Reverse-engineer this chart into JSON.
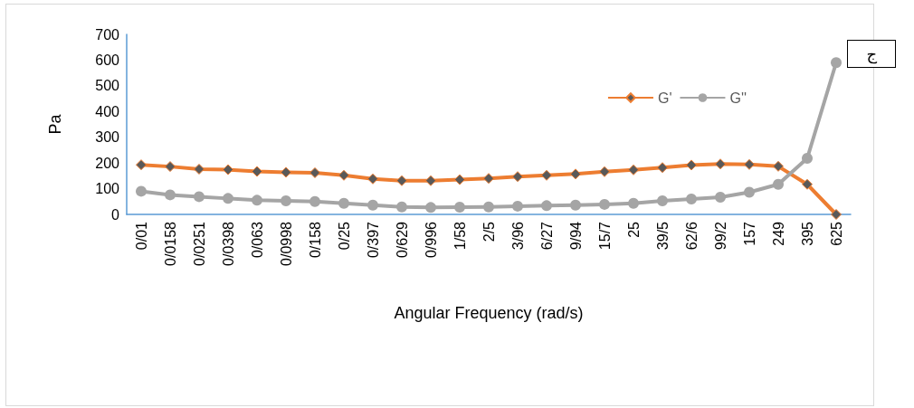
{
  "chart_data": {
    "type": "line",
    "xlabel": "Angular Frequency (rad/s)",
    "ylabel": "Pa",
    "categories": [
      "0/01",
      "0/0158",
      "0/0251",
      "0/0398",
      "0/063",
      "0/0998",
      "0/158",
      "0/25",
      "0/397",
      "0/629",
      "0/996",
      "1/58",
      "2/5",
      "3/96",
      "6/27",
      "9/94",
      "15/7",
      "25",
      "39/5",
      "62/6",
      "99/2",
      "157",
      "249",
      "395",
      "625"
    ],
    "series": [
      {
        "name": "G'",
        "color": "#ed7d31",
        "marker": "diamond",
        "values": [
          193,
          186,
          176,
          174,
          167,
          164,
          162,
          152,
          138,
          131,
          131,
          135,
          140,
          147,
          152,
          157,
          166,
          173,
          182,
          192,
          196,
          194,
          187,
          117,
          0
        ]
      },
      {
        "name": "G''",
        "color": "#a5a5a5",
        "marker": "circle",
        "values": [
          90,
          76,
          69,
          62,
          55,
          53,
          50,
          43,
          36,
          29,
          27,
          28,
          29,
          32,
          34,
          36,
          39,
          43,
          53,
          60,
          67,
          86,
          117,
          218,
          590
        ]
      }
    ],
    "ylim": [
      0,
      700
    ],
    "yticks": [
      0,
      100,
      200,
      300,
      400,
      500,
      600,
      700
    ],
    "grid": false,
    "legend": "top right",
    "annotations": [
      "ج"
    ]
  }
}
